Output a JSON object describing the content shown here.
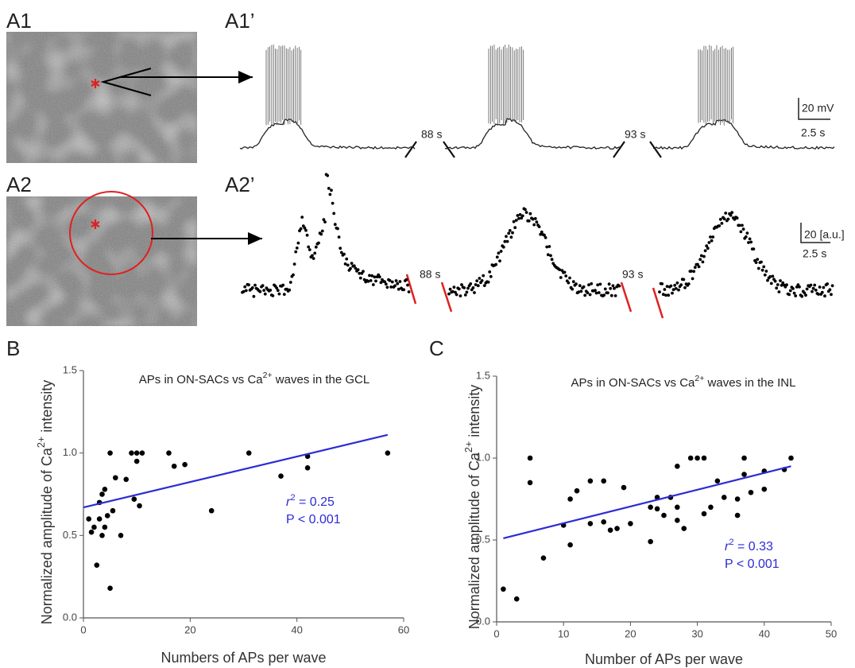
{
  "figure": {
    "labels": [
      "A1",
      "A1’",
      "A2",
      "A2’"
    ],
    "voltage_trace": {
      "gaps": [
        "88 s",
        "93 s"
      ],
      "scale_y": "20 mV",
      "scale_x": "2.5 s"
    },
    "calcium_trace": {
      "gaps": [
        "88 s",
        "93 s"
      ],
      "scale_y": "20 [a.u.]",
      "scale_x": "2.5 s"
    }
  },
  "chart_data": [
    {
      "type": "scatter",
      "panel": "B",
      "title": [
        "APs in ON-SACs vs Ca",
        "2+",
        " waves in the GCL"
      ],
      "xlabel": "Numbers of APs per wave",
      "ylabel": [
        "Normalized  amplitude of Ca",
        "2+",
        " intensity"
      ],
      "x": [
        1,
        1.5,
        2,
        2.5,
        3,
        3,
        3.5,
        3.5,
        4,
        4,
        4.5,
        5,
        5,
        5.5,
        6,
        7,
        8,
        9,
        9.5,
        10,
        10,
        10.5,
        11,
        16,
        17,
        19,
        24,
        31,
        37,
        42,
        42,
        57
      ],
      "y": [
        0.6,
        0.52,
        0.55,
        0.32,
        0.6,
        0.7,
        0.75,
        0.5,
        0.78,
        0.55,
        0.62,
        1.0,
        0.18,
        0.65,
        0.85,
        0.5,
        0.84,
        1.0,
        0.72,
        1.0,
        0.95,
        0.68,
        1.0,
        1.0,
        0.92,
        0.93,
        0.65,
        1.0,
        0.86,
        0.98,
        0.91,
        1.0
      ],
      "color": "#000000",
      "fit": {
        "x": [
          0,
          57
        ],
        "y": [
          0.67,
          1.11
        ],
        "color": "#2b2bd6"
      },
      "annotations": [
        [
          "r",
          "2",
          " = 0.25"
        ],
        [
          "P < 0.001"
        ]
      ],
      "xlim": [
        0,
        60
      ],
      "ylim": [
        0,
        1.5
      ],
      "xticks": [
        0,
        20,
        40,
        60
      ],
      "yticks": [
        {
          "value": 0,
          "label": "0.0"
        },
        0.5,
        {
          "value": 1,
          "label": "1.0"
        },
        1.5
      ]
    },
    {
      "type": "scatter",
      "panel": "C",
      "title": [
        "APs in ON-SACs vs Ca",
        "2+",
        " waves in the INL"
      ],
      "xlabel": "Number of APs per wave",
      "ylabel": [
        "Normalized  amplitude of Ca",
        "2+",
        " intensity"
      ],
      "x": [
        1,
        3,
        5,
        5,
        7,
        10,
        11,
        11,
        12,
        14,
        14,
        16,
        16,
        17,
        18,
        19,
        20,
        23,
        23,
        24,
        24,
        25,
        26,
        27,
        27,
        27,
        28,
        29,
        30,
        31,
        31,
        32,
        33,
        34,
        36,
        36,
        37,
        37,
        38,
        40,
        40,
        43,
        44
      ],
      "y": [
        0.2,
        0.14,
        1.0,
        0.85,
        0.39,
        0.59,
        0.75,
        0.47,
        0.8,
        0.6,
        0.86,
        0.61,
        0.86,
        0.56,
        0.57,
        0.82,
        0.6,
        0.49,
        0.7,
        0.76,
        0.69,
        0.65,
        0.76,
        0.95,
        0.7,
        0.62,
        0.57,
        1.0,
        1.0,
        0.66,
        1.0,
        0.7,
        0.86,
        0.76,
        0.65,
        0.75,
        1.0,
        0.9,
        0.79,
        0.92,
        0.81,
        0.93,
        1.0
      ],
      "color": "#000000",
      "fit": {
        "x": [
          1,
          44
        ],
        "y": [
          0.51,
          0.95
        ],
        "color": "#2b2bd6"
      },
      "annotations": [
        [
          "r",
          "2",
          " = 0.33"
        ],
        [
          "P < 0.001"
        ]
      ],
      "xlim": [
        0,
        50
      ],
      "ylim": [
        0,
        1.5
      ],
      "xticks": [
        0,
        10,
        20,
        30,
        40,
        50
      ],
      "yticks": [
        {
          "value": 0,
          "label": "0.0"
        },
        0.5,
        {
          "value": 1,
          "label": "1.0"
        },
        1.5
      ]
    }
  ]
}
